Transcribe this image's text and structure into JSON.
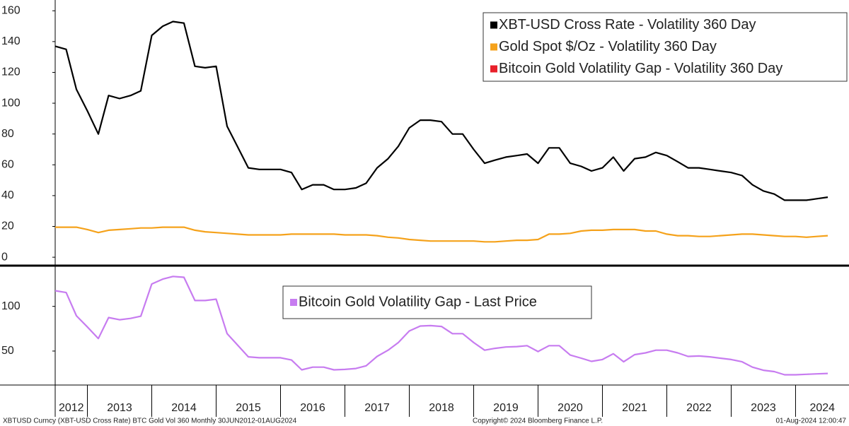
{
  "chart_data": [
    {
      "type": "line",
      "x": [
        2012.5,
        2012.67,
        2012.83,
        2013,
        2013.17,
        2013.33,
        2013.5,
        2013.67,
        2013.83,
        2014,
        2014.17,
        2014.33,
        2014.5,
        2014.67,
        2014.83,
        2015,
        2015.17,
        2015.33,
        2015.5,
        2015.67,
        2015.83,
        2016,
        2016.17,
        2016.33,
        2016.5,
        2016.67,
        2016.83,
        2017,
        2017.17,
        2017.33,
        2017.5,
        2017.67,
        2017.83,
        2018,
        2018.17,
        2018.33,
        2018.5,
        2018.67,
        2018.83,
        2019,
        2019.17,
        2019.33,
        2019.5,
        2019.67,
        2019.83,
        2020,
        2020.17,
        2020.33,
        2020.5,
        2020.67,
        2020.83,
        2021,
        2021.17,
        2021.33,
        2021.5,
        2021.67,
        2021.83,
        2022,
        2022.17,
        2022.33,
        2022.5,
        2022.67,
        2022.83,
        2023,
        2023.17,
        2023.33,
        2023.5,
        2023.67,
        2023.83,
        2024,
        2024.17,
        2024.33,
        2024.5
      ],
      "series": [
        {
          "name": "XBT-USD Cross Rate - Volatility 360 Day",
          "color": "#000000",
          "values": [
            137,
            135,
            109,
            95,
            80,
            105,
            103,
            105,
            108,
            144,
            150,
            153,
            152,
            124,
            123,
            124,
            85,
            72,
            58,
            57,
            57,
            57,
            55,
            44,
            47,
            47,
            44,
            44,
            45,
            48,
            58,
            64,
            72,
            84,
            89,
            89,
            88,
            80,
            80,
            70,
            61,
            63,
            65,
            66,
            67,
            61,
            71,
            71,
            61,
            59,
            56,
            58,
            65,
            56,
            64,
            65,
            68,
            66,
            62,
            58,
            58,
            57,
            56,
            55,
            53,
            47,
            43,
            41,
            37,
            37,
            37,
            38,
            39
          ]
        },
        {
          "name": "Gold Spot $/Oz - Volatility 360 Day",
          "color": "#f5a21b",
          "values": [
            19.5,
            19.5,
            19.5,
            18,
            16,
            17.5,
            18,
            18.5,
            19,
            19,
            19.5,
            19.5,
            19.5,
            17.5,
            16.5,
            16,
            15.5,
            15,
            14.5,
            14.5,
            14.5,
            14.5,
            15,
            15,
            15,
            15,
            15,
            14.5,
            14.5,
            14.5,
            14,
            13,
            12.5,
            11.5,
            11,
            10.5,
            10.5,
            10.5,
            10.5,
            10.5,
            10,
            10,
            10.5,
            11,
            11,
            11.5,
            15,
            15,
            15.5,
            17,
            17.5,
            17.5,
            18,
            18,
            18,
            17,
            17,
            15,
            14,
            14,
            13.5,
            13.5,
            14,
            14.5,
            15,
            15,
            14.5,
            14,
            13.5,
            13.5,
            13,
            13.5,
            14
          ]
        }
      ],
      "extra_legend_entries": [
        {
          "name": "Bitcoin Gold Volatility Gap - Volatility 360 Day",
          "color": "#e8202a"
        }
      ],
      "xlim": [
        2012.5,
        2024.83
      ],
      "ylim": [
        -5,
        167
      ],
      "yticks": [
        0,
        20,
        40,
        60,
        80,
        100,
        120,
        140,
        160
      ]
    },
    {
      "type": "line",
      "x": [
        2012.5,
        2012.67,
        2012.83,
        2013,
        2013.17,
        2013.33,
        2013.5,
        2013.67,
        2013.83,
        2014,
        2014.17,
        2014.33,
        2014.5,
        2014.67,
        2014.83,
        2015,
        2015.17,
        2015.33,
        2015.5,
        2015.67,
        2015.83,
        2016,
        2016.17,
        2016.33,
        2016.5,
        2016.67,
        2016.83,
        2017,
        2017.17,
        2017.33,
        2017.5,
        2017.67,
        2017.83,
        2018,
        2018.17,
        2018.33,
        2018.5,
        2018.67,
        2018.83,
        2019,
        2019.17,
        2019.33,
        2019.5,
        2019.67,
        2019.83,
        2020,
        2020.17,
        2020.33,
        2020.5,
        2020.67,
        2020.83,
        2021,
        2021.17,
        2021.33,
        2021.5,
        2021.67,
        2021.83,
        2022,
        2022.17,
        2022.33,
        2022.5,
        2022.67,
        2022.83,
        2023,
        2023.17,
        2023.33,
        2023.5,
        2023.67,
        2023.83,
        2024,
        2024.17,
        2024.33,
        2024.5
      ],
      "series": [
        {
          "name": "Bitcoin Gold Volatility Gap - Last Price",
          "color": "#c77cf0",
          "values": [
            117.5,
            115.5,
            89.5,
            77,
            64,
            87.5,
            85,
            86.5,
            89,
            125,
            130.5,
            133.5,
            132.5,
            106.5,
            106.5,
            108,
            69.5,
            57,
            43.5,
            42.5,
            42.5,
            42.5,
            40,
            29,
            32,
            32,
            29,
            29.5,
            30.5,
            33.5,
            44,
            51,
            59.5,
            72.5,
            78,
            78.5,
            77.5,
            69.5,
            69.5,
            59.5,
            51,
            53,
            54.5,
            55,
            56,
            49.5,
            56,
            56,
            45.5,
            42,
            38.5,
            40.5,
            47,
            38,
            46,
            48,
            51,
            51,
            48,
            44,
            44.5,
            43.5,
            42,
            40.5,
            38,
            32,
            28.5,
            27,
            23.5,
            23.5,
            24,
            24.5,
            25
          ]
        }
      ],
      "xlim": [
        2012.5,
        2024.83
      ],
      "ylim": [
        12,
        144
      ],
      "yticks": [
        50,
        100
      ],
      "xticks": [
        2012,
        2013,
        2014,
        2015,
        2016,
        2017,
        2018,
        2019,
        2020,
        2021,
        2022,
        2023,
        2024
      ]
    }
  ],
  "footer": {
    "left": "XBTUSD Curncy (XBT-USD Cross Rate) BTC Gold Vol 360  Monthly 30JUN2012-01AUG2024",
    "center": "Copyright© 2024 Bloomberg Finance L.P.",
    "right": "01-Aug-2024 12:00:47"
  }
}
